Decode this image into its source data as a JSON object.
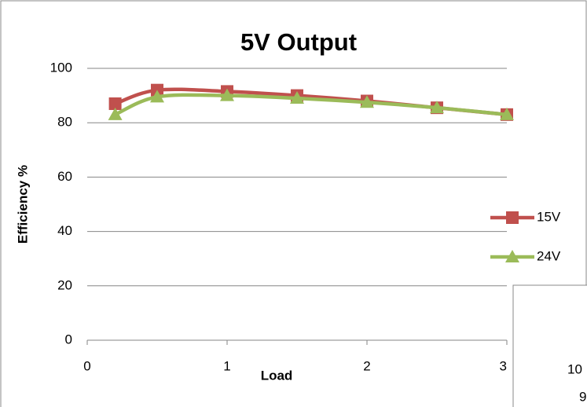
{
  "chart_data": {
    "type": "line",
    "title": "5V Output",
    "x_label": "Load",
    "y_label": "Efficiency %",
    "x": [
      0.2,
      0.5,
      1,
      1.5,
      2,
      2.5,
      3
    ],
    "series": [
      {
        "name": "15V",
        "color": "#c0504d",
        "marker": "square",
        "values": [
          87,
          92,
          91.5,
          90,
          88,
          85.5,
          83
        ]
      },
      {
        "name": "24V",
        "color": "#9bbb59",
        "marker": "triangle",
        "values": [
          83,
          89.5,
          90,
          89,
          87.5,
          85.5,
          83
        ]
      }
    ],
    "xlim": [
      0,
      3
    ],
    "xticks": [
      0,
      1,
      2,
      3
    ],
    "ylim": [
      0,
      100
    ],
    "yticks": [
      0,
      20,
      40,
      60,
      80,
      100
    ],
    "grid": true,
    "smooth": true,
    "legend": "right"
  },
  "fragment": {
    "texts": [
      "10",
      "9"
    ]
  }
}
